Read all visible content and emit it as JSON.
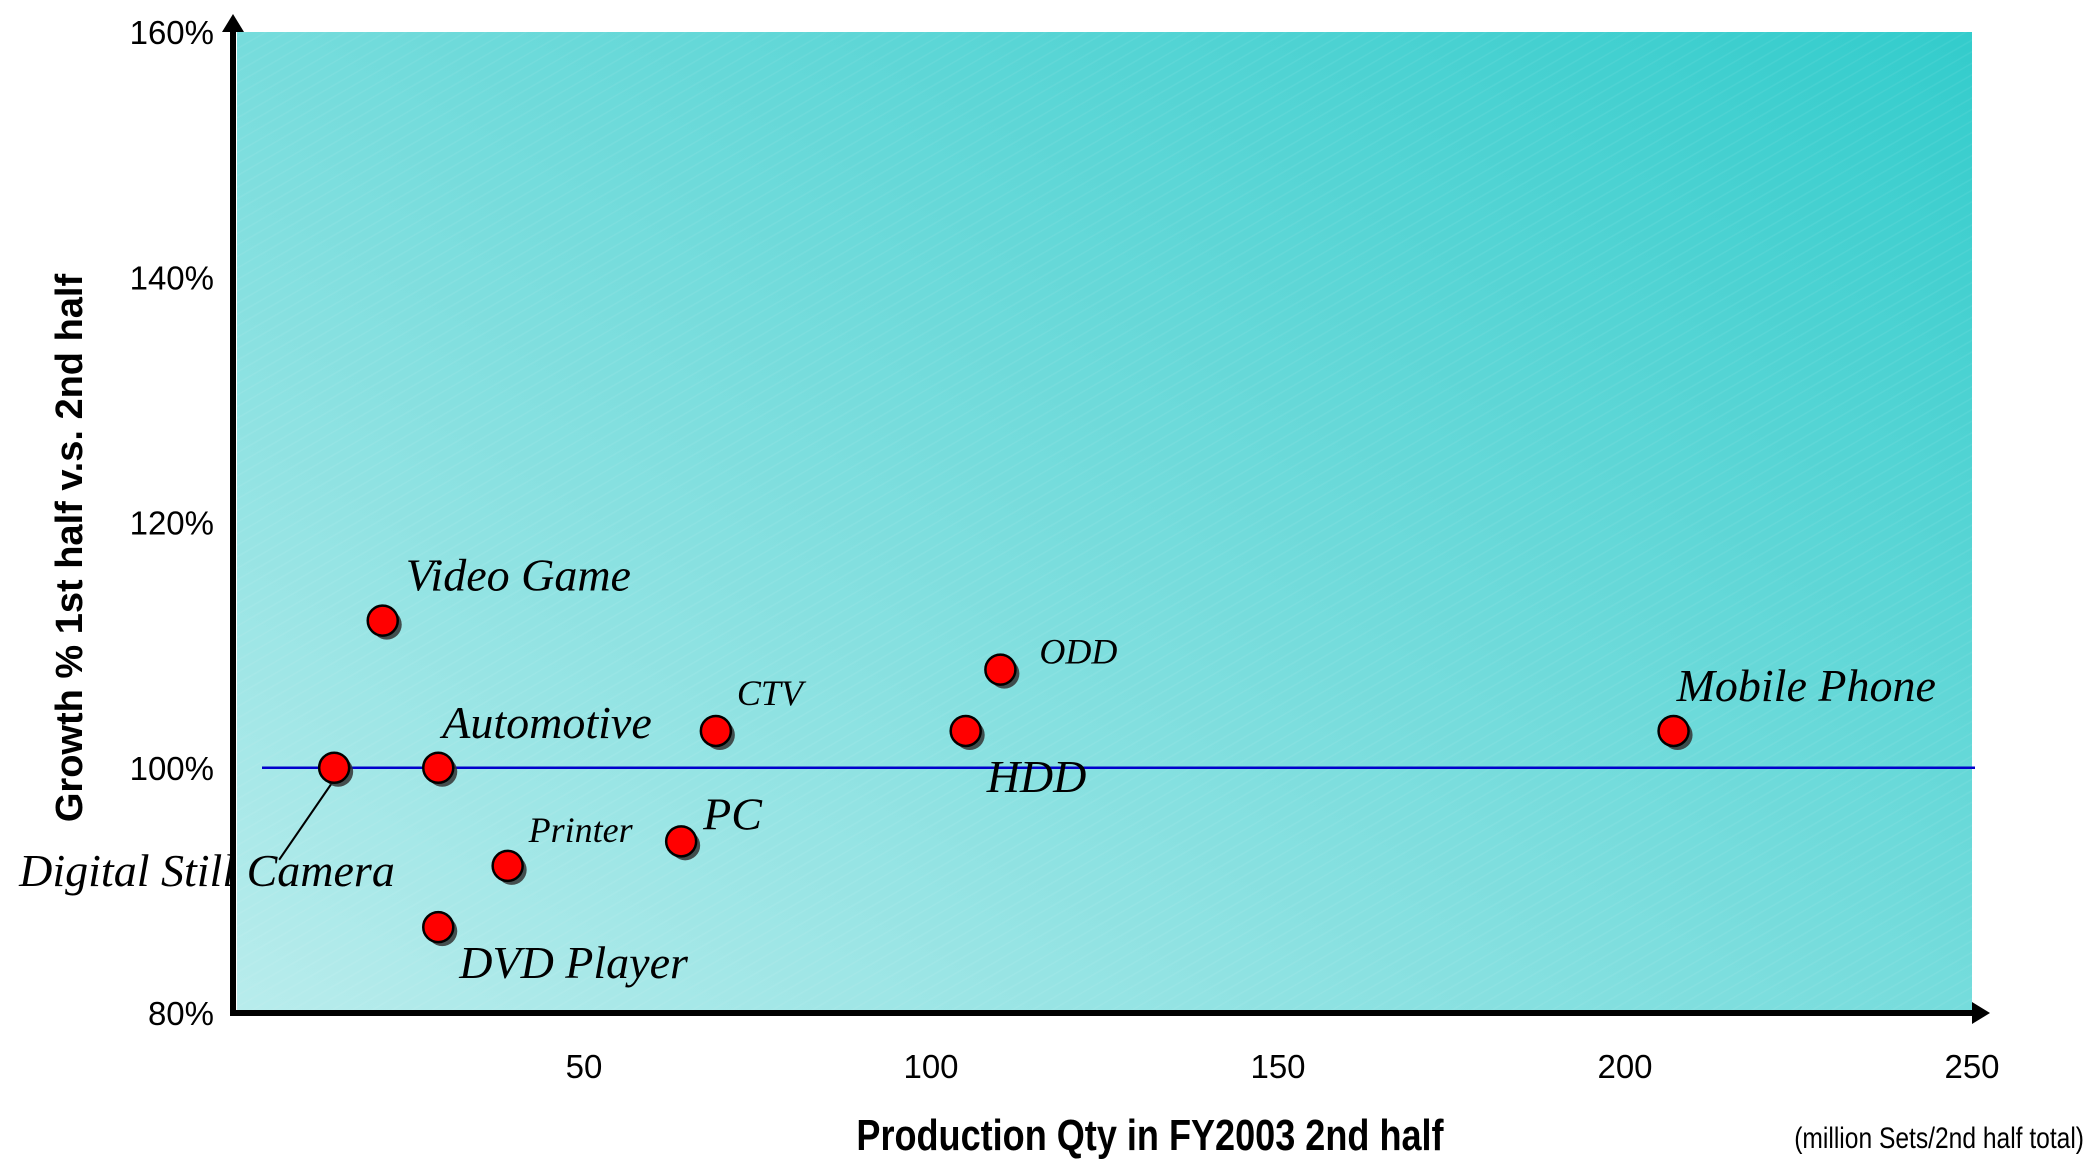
{
  "chart_data": {
    "type": "scatter",
    "xlabel": "Production Qty in FY2003 2nd half",
    "ylabel": "Growth %  1st half v.s. 2nd half",
    "x_unit_note": "(million Sets/2nd half total)",
    "xlim": [
      0,
      250
    ],
    "ylim": [
      80,
      160
    ],
    "x_ticks": [
      50,
      100,
      150,
      200,
      250
    ],
    "y_ticks": [
      80,
      100,
      120,
      140,
      160
    ],
    "y_tick_labels": [
      "80%",
      "100%",
      "120%",
      "140%",
      "160%"
    ],
    "reference_line": {
      "y": 100
    },
    "grid": false,
    "colors": {
      "point_fill": "#ff0000",
      "point_stroke": "#000000",
      "reference_line": "#0000cc",
      "background_light": "#b8ecec",
      "background_dark": "#33cccc"
    },
    "points": [
      {
        "label": "Digital Still Camera",
        "x": 14,
        "y": 100
      },
      {
        "label": "Video Game",
        "x": 21,
        "y": 112
      },
      {
        "label": "Automotive",
        "x": 29,
        "y": 100
      },
      {
        "label": "DVD Player",
        "x": 29,
        "y": 87
      },
      {
        "label": "Printer",
        "x": 39,
        "y": 92
      },
      {
        "label": "PC",
        "x": 64,
        "y": 94
      },
      {
        "label": "CTV",
        "x": 69,
        "y": 103
      },
      {
        "label": "HDD",
        "x": 105,
        "y": 103
      },
      {
        "label": "ODD",
        "x": 110,
        "y": 108
      },
      {
        "label": "Mobile Phone",
        "x": 207,
        "y": 103
      }
    ]
  }
}
